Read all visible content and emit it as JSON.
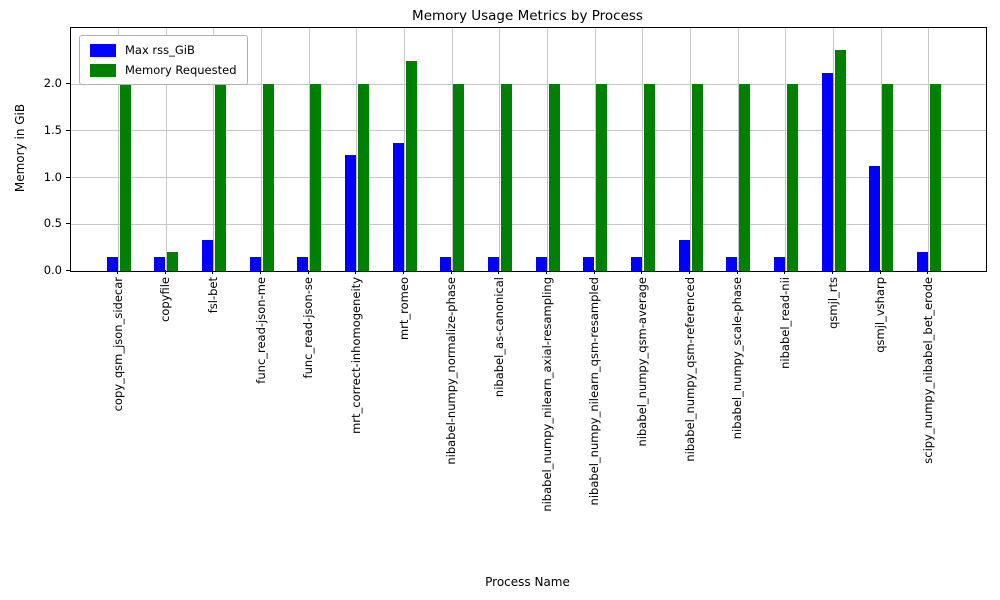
{
  "chart_data": {
    "type": "bar",
    "title": "Memory Usage Metrics by Process",
    "xlabel": "Process Name",
    "ylabel": "Memory in GiB",
    "ylim": [
      0,
      2.6
    ],
    "yticks": [
      0.0,
      0.5,
      1.0,
      1.5,
      2.0
    ],
    "grid": true,
    "legend_position": "upper left",
    "categories": [
      "copy_qsm_json_sidecar",
      "copyfile",
      "fsl-bet",
      "func_read-json-me",
      "func_read-json-se",
      "mrt_correct-inhomogeneity",
      "mrt_romeo",
      "nibabel-numpy_normalize-phase",
      "nibabel_as-canonical",
      "nibabel_numpy_nilearn_axial-resampling",
      "nibabel_numpy_nilearn_qsm-resampled",
      "nibabel_numpy_qsm-average",
      "nibabel_numpy_qsm-referenced",
      "nibabel_numpy_scale-phase",
      "nibabel_read-nii",
      "qsmjl_rts",
      "qsmjl_vsharp",
      "scipy_numpy_nibabel_bet_erode"
    ],
    "series": [
      {
        "name": "Max rss_GiB",
        "color": "#0000ff",
        "values": [
          0.15,
          0.15,
          0.33,
          0.15,
          0.15,
          1.24,
          1.37,
          0.15,
          0.15,
          0.15,
          0.15,
          0.15,
          0.33,
          0.15,
          0.15,
          2.12,
          1.12,
          0.2
        ]
      },
      {
        "name": "Memory Requested",
        "color": "#008000",
        "values": [
          2.0,
          0.2,
          2.0,
          2.0,
          2.0,
          2.0,
          2.25,
          2.0,
          2.0,
          2.0,
          2.0,
          2.0,
          2.0,
          2.0,
          2.0,
          2.37,
          2.0,
          2.0
        ]
      }
    ]
  }
}
